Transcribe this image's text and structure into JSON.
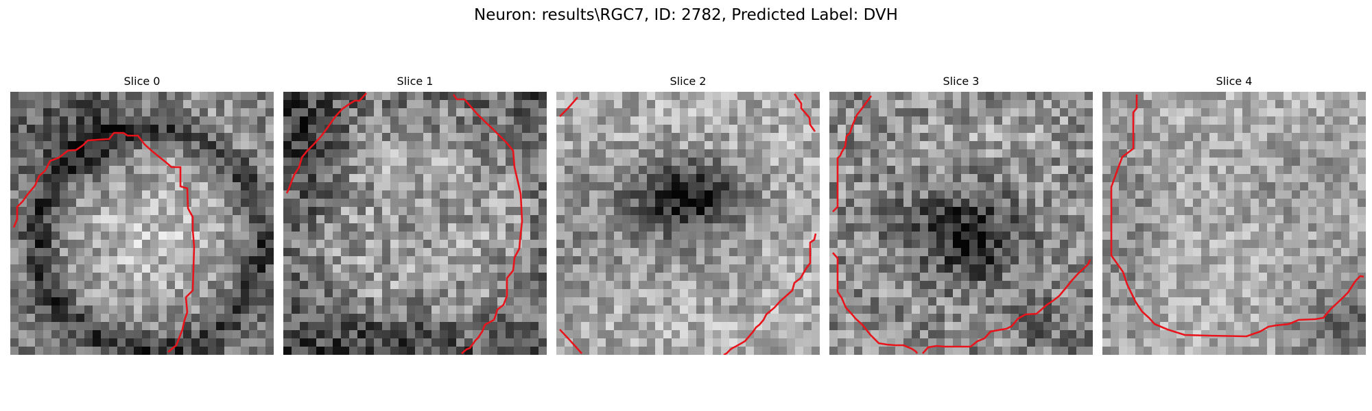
{
  "figure": {
    "title": "Neuron: results\\RGC7, ID: 2782, Predicted Label: DVH"
  },
  "colors": {
    "contour": "#e8141c",
    "colormap": "gray"
  },
  "panels": [
    {
      "id": "slice-0",
      "title": "Slice 0",
      "image_grid": "32x32 grayscale",
      "pattern": "bright ring-shaped cell with dark crescent upper-left"
    },
    {
      "id": "slice-1",
      "title": "Slice 1",
      "image_grid": "32x32 grayscale",
      "pattern": "bright textured cell with dark rim"
    },
    {
      "id": "slice-2",
      "title": "Slice 2",
      "image_grid": "32x32 grayscale",
      "pattern": "bright field with dark center blob"
    },
    {
      "id": "slice-3",
      "title": "Slice 3",
      "image_grid": "32x32 grayscale",
      "pattern": "medium-gray field with dark center region"
    },
    {
      "id": "slice-4",
      "title": "Slice 4",
      "image_grid": "32x32 grayscale",
      "pattern": "bright field, darker lower-right"
    }
  ]
}
